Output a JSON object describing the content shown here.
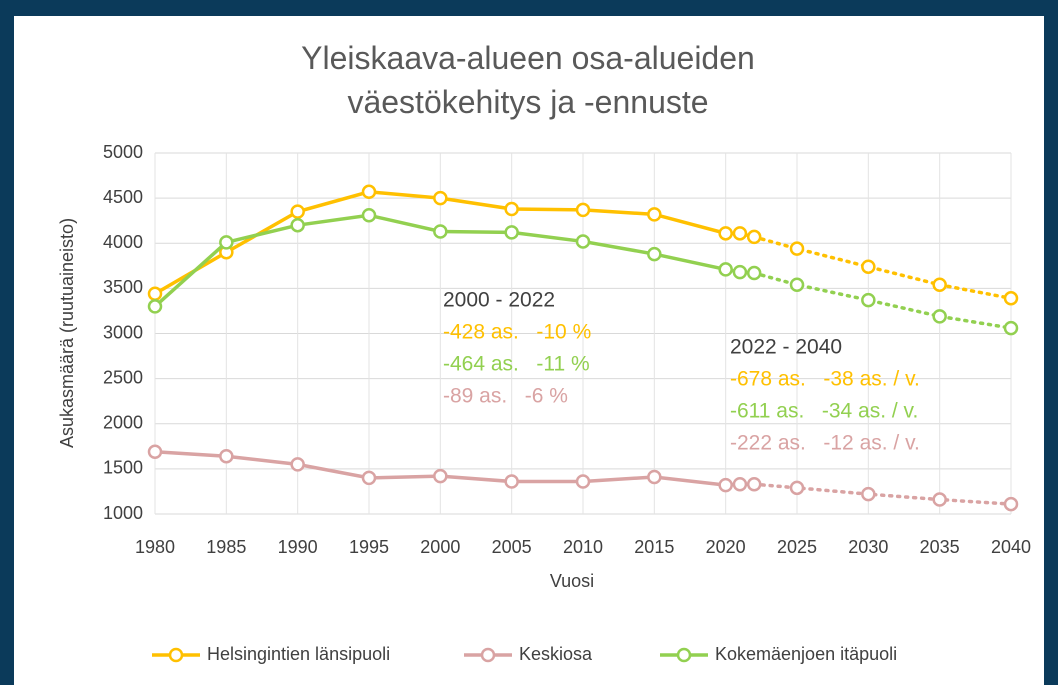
{
  "chart_data": {
    "type": "line",
    "title": "Yleiskaava-alueen osa-alueiden väestökehitys ja -ennuste",
    "x_label": "Vuosi",
    "y_label": "Asukasmäärä (ruutuaineisto)",
    "x": [
      1980,
      1985,
      1990,
      1995,
      2000,
      2005,
      2010,
      2015,
      2020,
      2021,
      2022,
      2025,
      2030,
      2035,
      2040
    ],
    "forecast_start": 2022,
    "series": [
      {
        "name": "Helsingintien länsipuoli",
        "color": "#FFC000",
        "values": [
          3440,
          3900,
          4350,
          4570,
          4500,
          4380,
          4370,
          4320,
          4110,
          4110,
          4070,
          3940,
          3740,
          3540,
          3390
        ]
      },
      {
        "name": "Keskiosa",
        "color": "#D9A3A3",
        "values": [
          1690,
          1640,
          1550,
          1400,
          1420,
          1360,
          1360,
          1410,
          1320,
          1330,
          1330,
          1290,
          1220,
          1160,
          1110
        ]
      },
      {
        "name": "Kokemäenjoen itäpuoli",
        "color": "#92D050",
        "values": [
          3300,
          4010,
          4200,
          4310,
          4130,
          4120,
          4020,
          3880,
          3710,
          3680,
          3670,
          3540,
          3370,
          3190,
          3060
        ]
      }
    ],
    "xlim": [
      1980,
      2040
    ],
    "xticks": [
      1980,
      1985,
      1990,
      1995,
      2000,
      2005,
      2010,
      2015,
      2020,
      2025,
      2030,
      2035,
      2040
    ],
    "ylim": [
      1000,
      5000
    ],
    "yticks": [
      1000,
      1500,
      2000,
      2500,
      3000,
      3500,
      4000,
      4500,
      5000
    ],
    "grid": true,
    "legend": "bottom",
    "annotations": [
      {
        "lines": [
          {
            "text": "2000 - 2022",
            "color": "#404040"
          },
          {
            "text": "-428 as.   -10 %",
            "color": "#FFC000"
          },
          {
            "text": "-464 as.   -11 %",
            "color": "#92D050"
          },
          {
            "text": "-89 as.   -6 %",
            "color": "#D9A3A3"
          }
        ]
      },
      {
        "lines": [
          {
            "text": "2022 - 2040",
            "color": "#404040"
          },
          {
            "text": "-678 as.   -38 as. / v.",
            "color": "#FFC000"
          },
          {
            "text": "-611 as.   -34 as. / v.",
            "color": "#92D050"
          },
          {
            "text": "-222 as.   -12 as. / v.",
            "color": "#D9A3A3"
          }
        ]
      }
    ]
  }
}
